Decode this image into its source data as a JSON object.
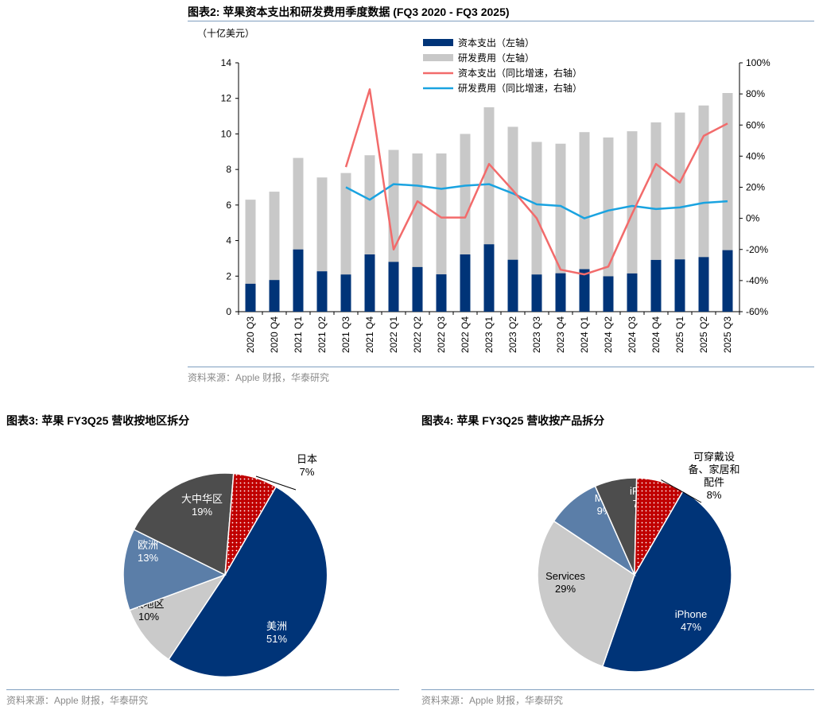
{
  "fig2": {
    "title": "图表2:  苹果资本支出和研发费用季度数据 (FQ3 2020 - FQ3 2025)",
    "source": "资料来源：Apple 财报，华泰研究",
    "colors": {
      "capex": "#003478",
      "rd": "#c8c8c8",
      "capex_growth": "#f26b6b",
      "rd_growth": "#1aa3e0"
    }
  },
  "fig3": {
    "title": "图表3:  苹果 FY3Q25 营收按地区拆分",
    "source": "资料来源：Apple 财报，华泰研究"
  },
  "fig4": {
    "title": "图表4:  苹果 FY3Q25 营收按产品拆分",
    "source": "资料来源：Apple 财报，华泰研究"
  },
  "chart_data": [
    {
      "type": "bar",
      "stacked": false,
      "unit": "（十亿美元）",
      "categories": [
        "2020 Q3",
        "2020 Q4",
        "2021 Q1",
        "2021 Q2",
        "2021 Q3",
        "2021 Q4",
        "2022 Q1",
        "2022 Q2",
        "2022 Q3",
        "2022 Q4",
        "2023 Q1",
        "2023 Q2",
        "2023 Q3",
        "2023 Q4",
        "2024 Q1",
        "2024 Q2",
        "2024 Q3",
        "2024 Q4",
        "2025 Q1",
        "2025 Q2",
        "2025 Q3"
      ],
      "series": [
        {
          "name": "资本支出（左轴）",
          "type": "bar",
          "axis": "left",
          "values": [
            1.57,
            1.78,
            3.5,
            2.27,
            2.09,
            3.22,
            2.8,
            2.51,
            2.1,
            3.22,
            3.79,
            2.92,
            2.09,
            2.16,
            2.39,
            1.99,
            2.15,
            2.91,
            2.94,
            3.07,
            3.46
          ]
        },
        {
          "name": "研发费用（左轴）",
          "type": "bar",
          "axis": "left",
          "values": [
            6.3,
            6.75,
            8.65,
            7.55,
            7.8,
            8.8,
            9.1,
            8.9,
            8.9,
            10.0,
            11.5,
            10.4,
            9.55,
            9.45,
            10.1,
            9.8,
            10.15,
            10.65,
            11.2,
            11.6,
            12.3
          ]
        },
        {
          "name": "资本支出（同比增速，右轴）",
          "type": "line",
          "axis": "right",
          "values": [
            null,
            null,
            null,
            null,
            33,
            83,
            -20,
            11,
            0.5,
            0.5,
            35,
            18,
            0,
            -33,
            -36,
            -31,
            3,
            35,
            23,
            53,
            61
          ]
        },
        {
          "name": "研发费用（同比增速，右轴）",
          "type": "line",
          "axis": "right",
          "values": [
            null,
            null,
            null,
            null,
            20,
            12,
            22,
            21,
            19,
            21,
            22,
            16,
            9,
            8,
            0,
            5,
            8,
            6,
            7,
            10,
            11
          ]
        }
      ],
      "ylim_left": [
        0,
        14
      ],
      "yticks_left": [
        "0",
        "2",
        "4",
        "6",
        "8",
        "10",
        "12",
        "14"
      ],
      "ylim_right": [
        -60,
        100
      ],
      "yticks_right": [
        "-60%",
        "-40%",
        "-20%",
        "0%",
        "20%",
        "40%",
        "60%",
        "80%",
        "100%"
      ],
      "legend_position": "top"
    },
    {
      "type": "pie",
      "slices": [
        {
          "label": "美洲",
          "value": 51,
          "display": "51%",
          "color": "#003478",
          "text_color": "#ffffff"
        },
        {
          "label": "其他亚太地区",
          "label_lines": [
            "其他亚",
            "太地区"
          ],
          "value": 10,
          "display": "10%",
          "color": "#cacaca",
          "text_color": "#000000"
        },
        {
          "label": "欧洲",
          "value": 13,
          "display": "13%",
          "color": "#5b7ea8",
          "text_color": "#ffffff"
        },
        {
          "label": "大中华区",
          "value": 19,
          "display": "19%",
          "color": "#4d4d4d",
          "text_color": "#ffffff"
        },
        {
          "label": "日本",
          "value": 7,
          "display": "7%",
          "color": "#c00000",
          "text_color": "#000000",
          "pattern": "dots",
          "label_outside": true
        }
      ]
    },
    {
      "type": "pie",
      "slices": [
        {
          "label": "iPhone",
          "value": 47,
          "display": "47%",
          "color": "#003478",
          "text_color": "#ffffff"
        },
        {
          "label": "Services",
          "value": 29,
          "display": "29%",
          "color": "#cacaca",
          "text_color": "#000000"
        },
        {
          "label": "Mac",
          "value": 9,
          "display": "9%",
          "color": "#5b7ea8",
          "text_color": "#ffffff"
        },
        {
          "label": "iPad",
          "value": 7,
          "display": "7%",
          "color": "#4d4d4d",
          "text_color": "#ffffff"
        },
        {
          "label": "可穿戴设备、家居和配件",
          "label_lines": [
            "可穿戴设",
            "备、家居和",
            "配件"
          ],
          "value": 8,
          "display": "8%",
          "color": "#c00000",
          "text_color": "#000000",
          "pattern": "dots",
          "label_outside": true
        }
      ]
    }
  ]
}
